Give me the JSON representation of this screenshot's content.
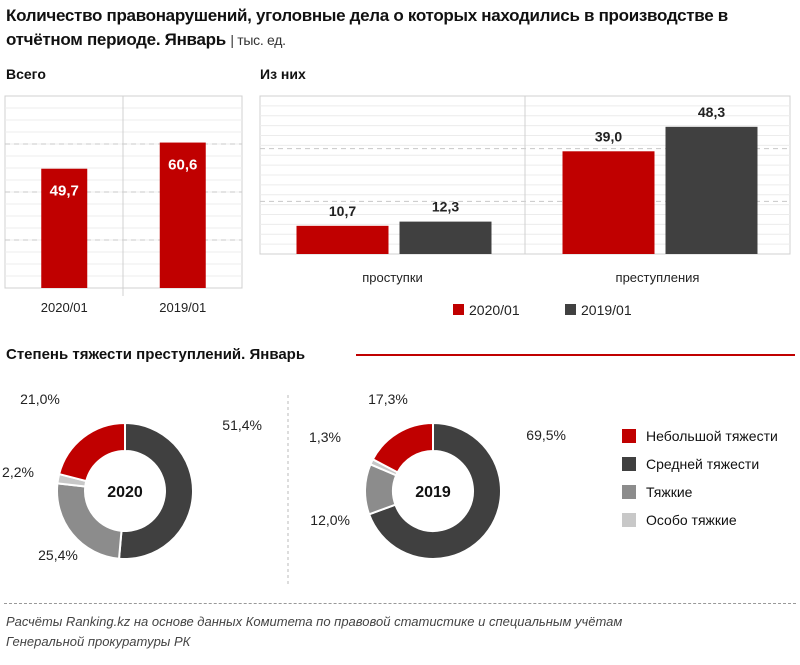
{
  "title": "Количество правонарушений, уголовные дела о которых находились в производстве в отчётном периоде. Январь",
  "unit": "тыс. ед.",
  "colors": {
    "red": "#c00000",
    "dark": "#404040",
    "gray": "#8c8c8c",
    "light": "#c8c8c8"
  },
  "chart_data": [
    {
      "type": "bar",
      "title": "Всего",
      "categories": [
        "2020/01",
        "2019/01"
      ],
      "values": [
        49.7,
        60.6
      ],
      "value_labels": [
        "49,7",
        "60,6"
      ],
      "ylim": [
        0,
        80
      ],
      "grid": true
    },
    {
      "type": "bar",
      "title": "Из них",
      "categories": [
        "проступки",
        "преступления"
      ],
      "series": [
        {
          "name": "2020/01",
          "values": [
            10.7,
            39.0
          ],
          "labels": [
            "10,7",
            "39,0"
          ],
          "color": "#c00000"
        },
        {
          "name": "2019/01",
          "values": [
            12.3,
            48.3
          ],
          "labels": [
            "12,3",
            "48,3"
          ],
          "color": "#404040"
        }
      ],
      "ylim": [
        0,
        60
      ],
      "grid": true,
      "legend": "bottom"
    },
    {
      "type": "pie",
      "title": "Степень тяжести преступлений. Январь",
      "donuts": [
        {
          "center_label": "2020",
          "values": [
            51.4,
            25.4,
            2.2,
            21.0
          ],
          "labels": [
            "51,4%",
            "25,4%",
            "2,2%",
            "21,0%"
          ]
        },
        {
          "center_label": "2019",
          "values": [
            69.5,
            12.0,
            1.3,
            17.3
          ],
          "labels": [
            "69,5%",
            "12,0%",
            "1,3%",
            "17,3%"
          ]
        }
      ],
      "categories": [
        "Средней тяжести",
        "Тяжкие",
        "Особо тяжкие",
        "Небольшой тяжести"
      ],
      "colors": [
        "#404040",
        "#8c8c8c",
        "#c8c8c8",
        "#c00000"
      ],
      "legend_order": [
        "Небольшой тяжести",
        "Средней тяжести",
        "Тяжкие",
        "Особо тяжкие"
      ],
      "legend_colors": [
        "#c00000",
        "#404040",
        "#8c8c8c",
        "#c8c8c8"
      ],
      "legend": "right"
    }
  ],
  "footer": {
    "line1": "Расчёты Ranking.kz на основе данных  Комитета по правовой статистике и специальным  учётам",
    "line2": "Генеральной прокуратуры  РК"
  }
}
